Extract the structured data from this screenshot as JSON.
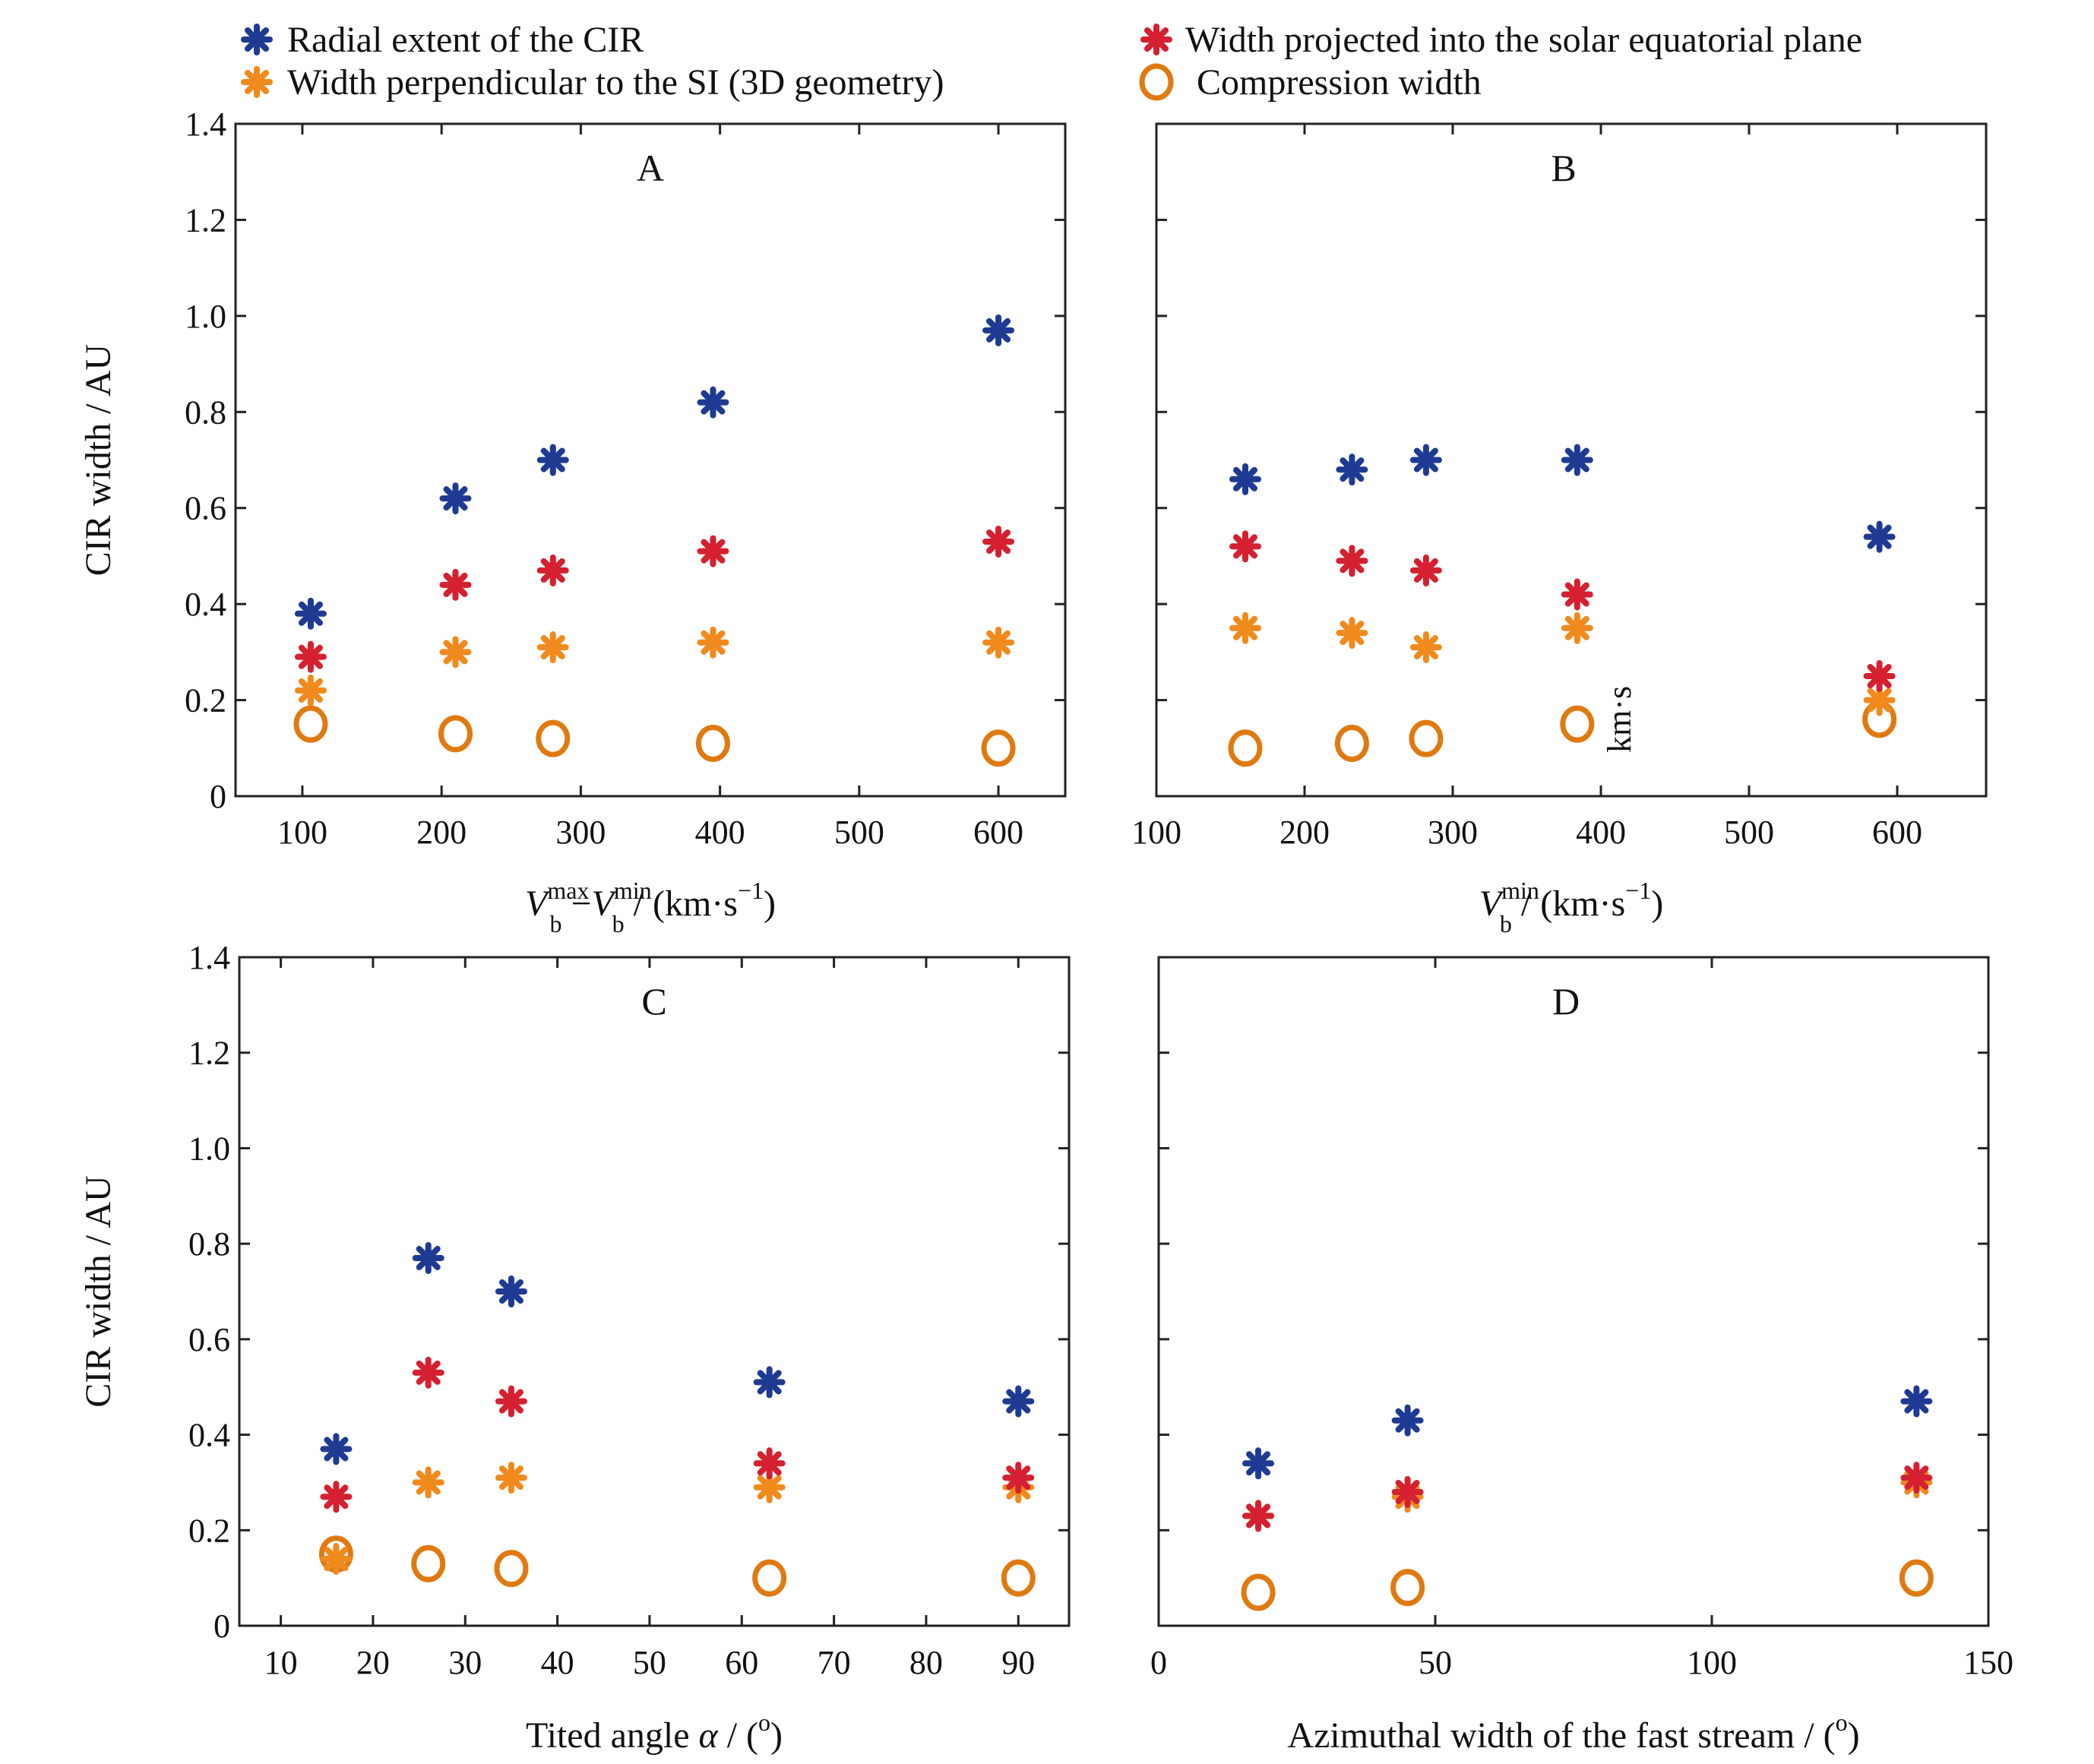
{
  "colors": {
    "radial": "#1f3a93",
    "projected": "#d42030",
    "perpendicular": "#f08a1c",
    "compression": "#e07a10",
    "axis": "#222222"
  },
  "legend": [
    {
      "key": "radial",
      "label": "Radial extent of the CIR",
      "marker": "asterisk"
    },
    {
      "key": "projected",
      "label": "Width projected into the solar equatorial plane",
      "marker": "asterisk"
    },
    {
      "key": "perpendicular",
      "label": "Width perpendicular to the SI (3D geometry)",
      "marker": "asterisk"
    },
    {
      "key": "compression",
      "label": "Compression width",
      "marker": "circle"
    }
  ],
  "chart_data": [
    {
      "type": "scatter",
      "panel": "A",
      "ylabel": "CIR width / AU",
      "xlabel": {
        "main": "V",
        "sub1": "b",
        "sup1": "max",
        "mid": " −V",
        "sub2": "b",
        "sup2": "min",
        "units": " / (km·s",
        "units_sup": "−1",
        "close": ")"
      },
      "xlim": [
        52,
        648
      ],
      "ylim": [
        0,
        1.4
      ],
      "xticks": [
        100,
        200,
        300,
        400,
        500,
        600
      ],
      "yticks": [
        0,
        0.2,
        0.4,
        0.6,
        0.8,
        1.0,
        1.2,
        1.4
      ],
      "ytick_labels": [
        "0",
        "0.2",
        "0.4",
        "0.6",
        "0.8",
        "1.0",
        "1.2",
        "1.4"
      ],
      "series": [
        {
          "key": "radial",
          "x": [
            106,
            210,
            280,
            395,
            600
          ],
          "y": [
            0.38,
            0.62,
            0.7,
            0.82,
            0.97
          ]
        },
        {
          "key": "projected",
          "x": [
            106,
            210,
            280,
            395,
            600
          ],
          "y": [
            0.29,
            0.44,
            0.47,
            0.51,
            0.53
          ]
        },
        {
          "key": "perpendicular",
          "x": [
            106,
            210,
            280,
            395,
            600
          ],
          "y": [
            0.22,
            0.3,
            0.31,
            0.32,
            0.32
          ]
        },
        {
          "key": "compression",
          "x": [
            106,
            210,
            280,
            395,
            600
          ],
          "y": [
            0.15,
            0.13,
            0.12,
            0.11,
            0.1
          ]
        }
      ]
    },
    {
      "type": "scatter",
      "panel": "B",
      "ylabel": "",
      "xlabel": {
        "main": "V",
        "sub1": "b",
        "sup1": "min",
        "mid": "",
        "sub2": "",
        "sup2": "",
        "units": " / (km·s",
        "units_sup": "−1",
        "close": ")"
      },
      "xlim": [
        100,
        660
      ],
      "ylim": [
        0,
        1.4
      ],
      "xticks": [
        100,
        200,
        300,
        400,
        500,
        600
      ],
      "yticks": [
        0,
        0.2,
        0.4,
        0.6,
        0.8,
        1.0,
        1.2,
        1.4
      ],
      "ytick_labels": [],
      "stray_text": "km·s",
      "series": [
        {
          "key": "radial",
          "x": [
            160,
            232,
            282,
            384,
            588
          ],
          "y": [
            0.66,
            0.68,
            0.7,
            0.7,
            0.54
          ]
        },
        {
          "key": "projected",
          "x": [
            160,
            232,
            282,
            384,
            588
          ],
          "y": [
            0.52,
            0.49,
            0.47,
            0.42,
            0.25
          ]
        },
        {
          "key": "perpendicular",
          "x": [
            160,
            232,
            282,
            384,
            588
          ],
          "y": [
            0.35,
            0.34,
            0.31,
            0.35,
            0.2
          ]
        },
        {
          "key": "compression",
          "x": [
            160,
            232,
            282,
            384,
            588
          ],
          "y": [
            0.1,
            0.11,
            0.12,
            0.15,
            0.16
          ]
        }
      ]
    },
    {
      "type": "scatter",
      "panel": "C",
      "ylabel": "CIR width / AU",
      "xlabel": {
        "main": "Tited angle ",
        "italic": "α",
        "units": " / (",
        "units_sup": "o",
        "close": ")"
      },
      "xlim": [
        5.5,
        95.5
      ],
      "ylim": [
        0,
        1.4
      ],
      "xticks": [
        10,
        20,
        30,
        40,
        50,
        60,
        70,
        80,
        90
      ],
      "yticks": [
        0,
        0.2,
        0.4,
        0.6,
        0.8,
        1.0,
        1.2,
        1.4
      ],
      "ytick_labels": [
        "0",
        "0.2",
        "0.4",
        "0.6",
        "0.8",
        "1.0",
        "1.2",
        "1.4"
      ],
      "series": [
        {
          "key": "radial",
          "x": [
            16,
            26,
            35,
            63,
            90
          ],
          "y": [
            0.37,
            0.77,
            0.7,
            0.51,
            0.47
          ]
        },
        {
          "key": "projected",
          "x": [
            16,
            26,
            35,
            63,
            90
          ],
          "y": [
            0.27,
            0.53,
            0.47,
            0.34,
            0.31
          ]
        },
        {
          "key": "perpendicular",
          "x": [
            16,
            26,
            35,
            63,
            90
          ],
          "y": [
            0.14,
            0.3,
            0.31,
            0.29,
            0.29
          ]
        },
        {
          "key": "compression",
          "x": [
            16,
            26,
            35,
            63,
            90
          ],
          "y": [
            0.15,
            0.13,
            0.12,
            0.1,
            0.1
          ]
        }
      ]
    },
    {
      "type": "scatter",
      "panel": "D",
      "ylabel": "",
      "xlabel": {
        "main": "Azimuthal width of the fast stream",
        "italic": "",
        "units": " / (",
        "units_sup": "o",
        "close": ")"
      },
      "xlim": [
        0,
        150
      ],
      "ylim": [
        0,
        1.4
      ],
      "xticks": [
        0,
        50,
        100,
        150
      ],
      "yticks": [
        0,
        0.2,
        0.4,
        0.6,
        0.8,
        1.0,
        1.2,
        1.4
      ],
      "ytick_labels": [],
      "series": [
        {
          "key": "radial",
          "x": [
            18,
            45,
            137
          ],
          "y": [
            0.34,
            0.43,
            0.47
          ]
        },
        {
          "key": "projected",
          "x": [
            18,
            45,
            137
          ],
          "y": [
            0.23,
            0.28,
            0.31
          ]
        },
        {
          "key": "perpendicular",
          "x": [
            18,
            45,
            137
          ],
          "y": [
            0.23,
            0.27,
            0.3
          ]
        },
        {
          "key": "compression",
          "x": [
            18,
            45,
            137
          ],
          "y": [
            0.07,
            0.08,
            0.1
          ]
        }
      ]
    }
  ]
}
